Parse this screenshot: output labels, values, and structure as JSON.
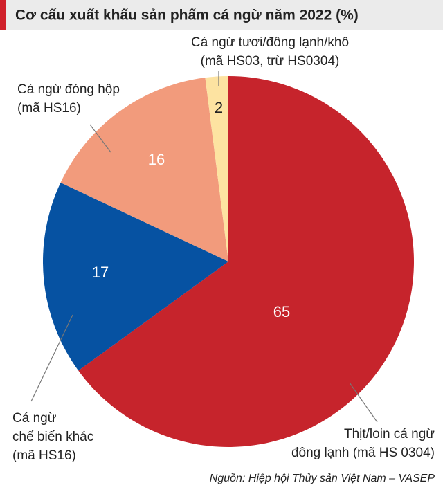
{
  "chart_data": {
    "type": "pie",
    "title": "Cơ cấu xuất khẩu sản phẩm cá ngừ năm 2022 (%)",
    "categories": [
      [
        "Thịt/loin cá ngừ",
        "đông lạnh (mã HS 0304)"
      ],
      [
        "Cá ngừ",
        "chế biến khác",
        "(mã HS16)"
      ],
      [
        "Cá ngừ đóng hộp",
        "(mã HS16)"
      ],
      [
        "Cá ngừ tươi/đông lạnh/khô",
        "(mã HS03, trừ HS0304)"
      ]
    ],
    "values": [
      65,
      17,
      16,
      2
    ],
    "colors": [
      "#c6242c",
      "#0652a2",
      "#f29b7c",
      "#fde3a1"
    ],
    "source": "Nguồn: Hiệp hội Thủy sản Việt Nam – VASEP"
  }
}
